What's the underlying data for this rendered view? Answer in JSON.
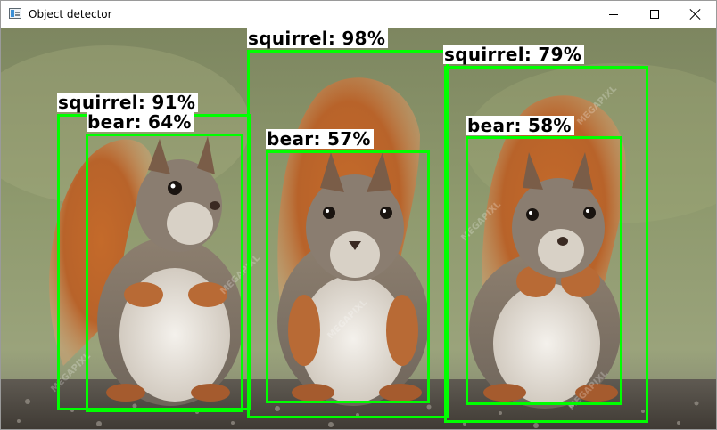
{
  "window": {
    "title": "Object detector",
    "controls": {
      "minimize": "minimize-icon",
      "maximize": "maximize-icon",
      "close": "close-icon"
    }
  },
  "colors": {
    "box": "#00ff00",
    "label_bg": "#ffffff",
    "label_text": "#000000"
  },
  "watermark": "MEGAPIXL",
  "detections": [
    {
      "label": "squirrel: 91%"
    },
    {
      "label": "bear: 64%"
    },
    {
      "label": "squirrel: 98%"
    },
    {
      "label": "bear: 57%"
    },
    {
      "label": "squirrel: 79%"
    },
    {
      "label": "bear: 58%"
    }
  ]
}
